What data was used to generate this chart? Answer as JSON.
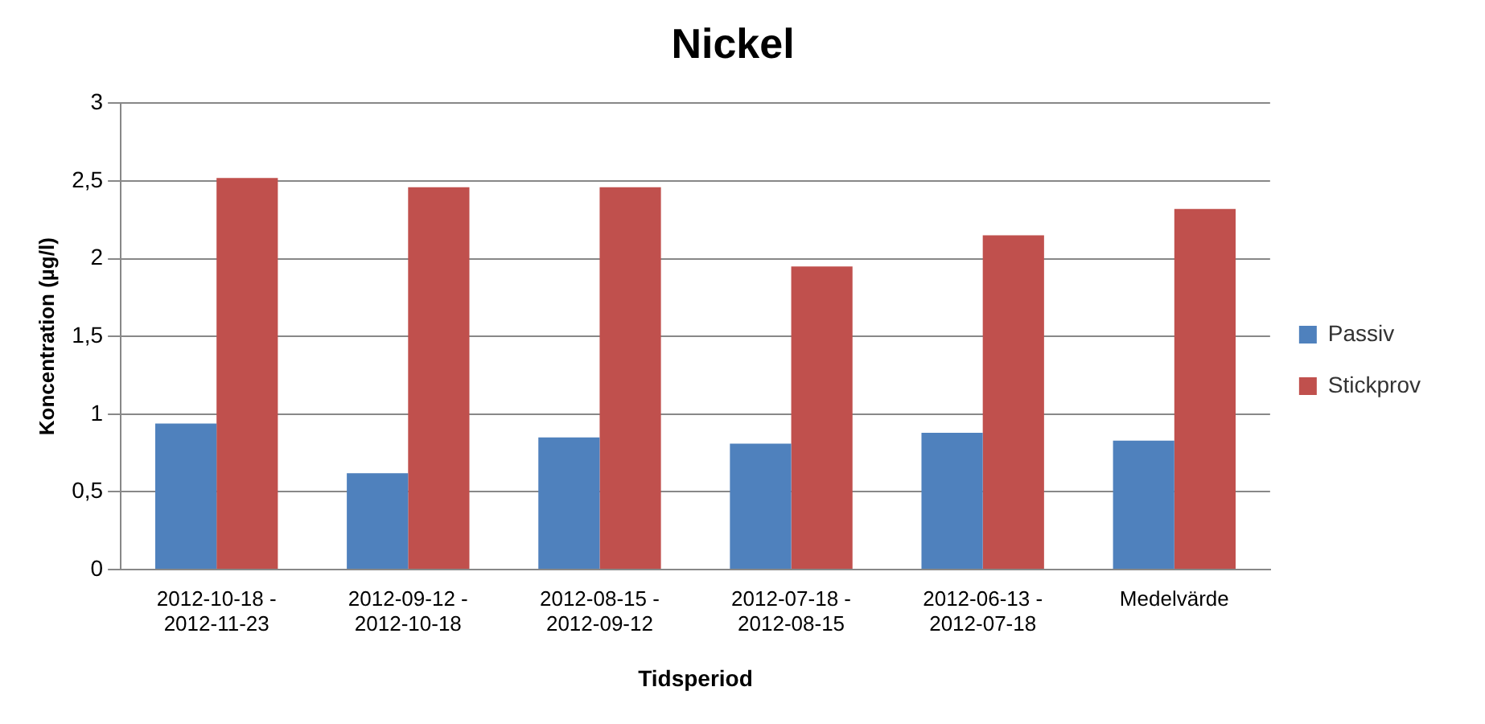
{
  "chart_data": {
    "type": "bar",
    "title": "Nickel",
    "xlabel": "Tidsperiod",
    "ylabel": "Koncentration (µg/l)",
    "categories": [
      "2012-10-18 - 2012-11-23",
      "2012-09-12 - 2012-10-18",
      "2012-08-15 - 2012-09-12",
      "2012-07-18 - 2012-08-15",
      "2012-06-13 - 2012-07-18",
      "Medelvärde"
    ],
    "series": [
      {
        "name": "Passiv",
        "color": "#4f81bd",
        "values": [
          0.94,
          0.62,
          0.85,
          0.81,
          0.88,
          0.83
        ]
      },
      {
        "name": "Stickprov",
        "color": "#c0504d",
        "values": [
          2.52,
          2.46,
          2.46,
          1.95,
          2.15,
          2.32
        ]
      }
    ],
    "ylim": [
      0,
      3
    ],
    "yticks": [
      0,
      {
        "value": 0.5,
        "label": "0,5"
      },
      1,
      {
        "value": 1.5,
        "label": "1,5"
      },
      2,
      {
        "value": 2.5,
        "label": "2,5"
      },
      3
    ],
    "grid": "y",
    "legend": "right"
  }
}
